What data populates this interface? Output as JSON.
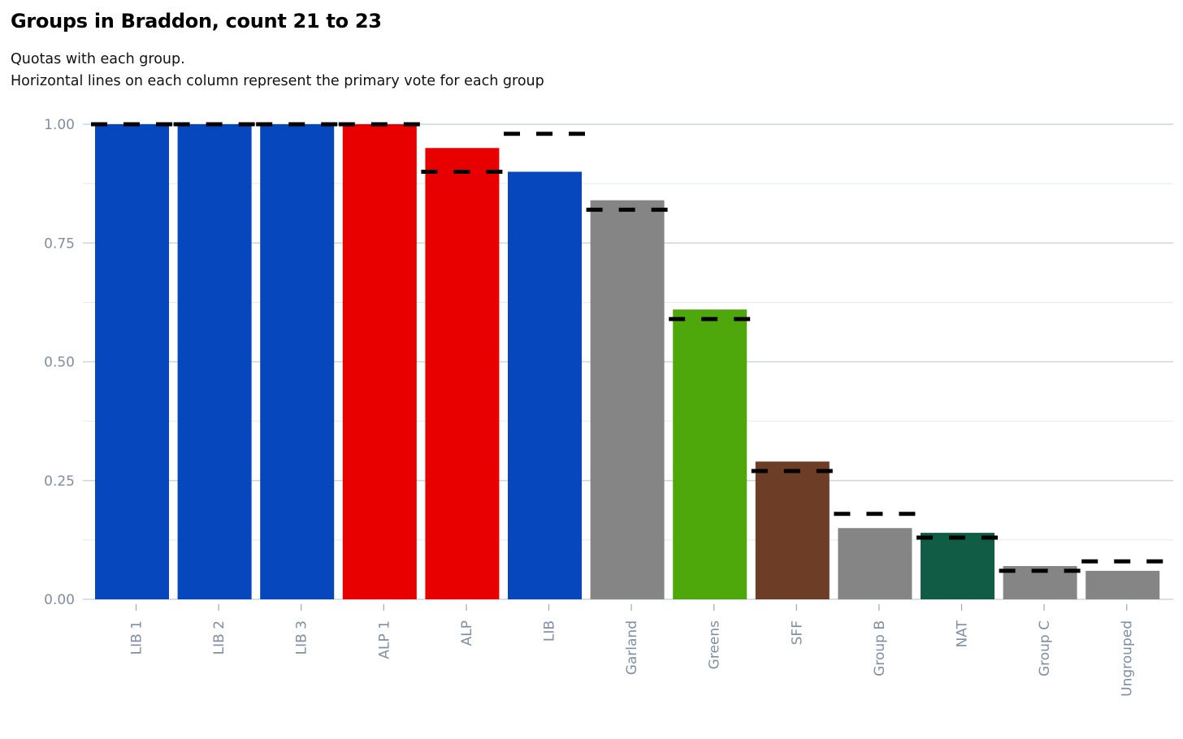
{
  "title": "Groups in Braddon, count 21 to 23",
  "subtitle_line1": "Quotas with each group.",
  "subtitle_line2": "Horizontal lines on each column represent the primary vote for each group",
  "chart_data": {
    "type": "bar",
    "title": "Groups in Braddon, count 21 to 23",
    "xlabel": "",
    "ylabel": "",
    "ylim": [
      0,
      1.0
    ],
    "yticks": [
      0.0,
      0.25,
      0.5,
      0.75,
      1.0
    ],
    "ytick_labels": [
      "0.00",
      "0.25",
      "0.50",
      "0.75",
      "1.00"
    ],
    "grid": true,
    "categories": [
      "LIB 1",
      "LIB 2",
      "LIB 3",
      "ALP 1",
      "ALP",
      "LIB",
      "Garland",
      "Greens",
      "SFF",
      "Group B",
      "NAT",
      "Group C",
      "Ungrouped"
    ],
    "series": [
      {
        "name": "Quotas",
        "values": [
          1.0,
          1.0,
          1.0,
          1.0,
          0.95,
          0.9,
          0.84,
          0.61,
          0.29,
          0.15,
          0.14,
          0.07,
          0.06
        ]
      },
      {
        "name": "Primary vote",
        "style": "dashed-line",
        "values": [
          1.0,
          1.0,
          1.0,
          1.0,
          0.9,
          0.98,
          0.82,
          0.59,
          0.27,
          0.18,
          0.13,
          0.06,
          0.08
        ]
      }
    ],
    "colors": [
      "#0647bd",
      "#0647bd",
      "#0647bd",
      "#e80000",
      "#e80000",
      "#0647bd",
      "#858585",
      "#4fa80b",
      "#6e3d26",
      "#858585",
      "#115c45",
      "#858585",
      "#858585"
    ]
  }
}
